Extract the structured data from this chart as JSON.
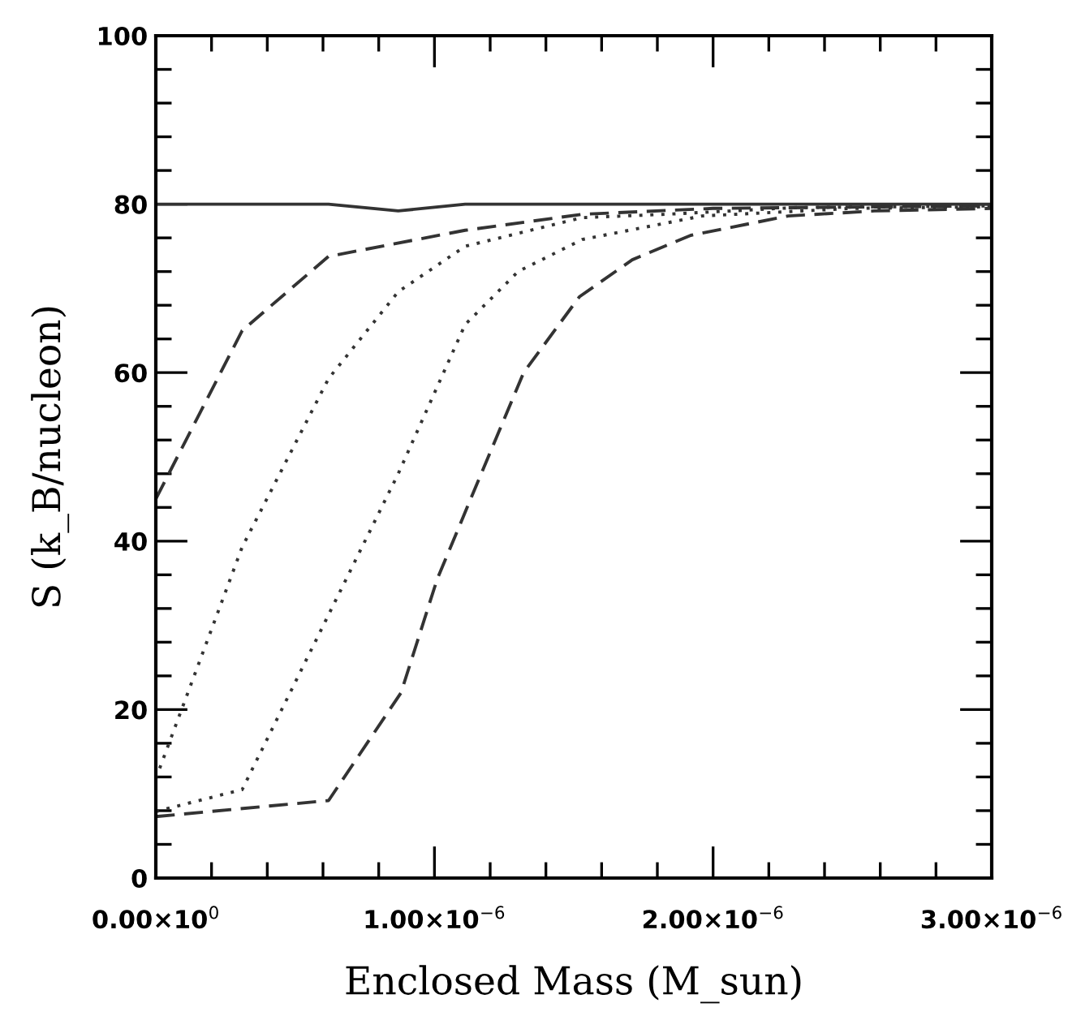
{
  "chart_data": {
    "type": "line",
    "xlabel": "Enclosed Mass (M_sun)",
    "ylabel": "S (k_B/nucleon)",
    "xlim": [
      0,
      3e-06
    ],
    "ylim": [
      0,
      100
    ],
    "xticks": [
      {
        "value": 0,
        "label": "0.00×10$^{0}$"
      },
      {
        "value": 2e-07,
        "label": null
      },
      {
        "value": 4e-07,
        "label": null
      },
      {
        "value": 6e-07,
        "label": null
      },
      {
        "value": 8e-07,
        "label": null
      },
      {
        "value": 1e-06,
        "label": "1.00×10$^{−6}$"
      },
      {
        "value": 1.2e-06,
        "label": null
      },
      {
        "value": 1.4e-06,
        "label": null
      },
      {
        "value": 1.6e-06,
        "label": null
      },
      {
        "value": 1.8e-06,
        "label": null
      },
      {
        "value": 2e-06,
        "label": "2.00×10$^{−6}$"
      },
      {
        "value": 2.2e-06,
        "label": null
      },
      {
        "value": 2.4e-06,
        "label": null
      },
      {
        "value": 2.6e-06,
        "label": null
      },
      {
        "value": 2.8e-06,
        "label": null
      },
      {
        "value": 3e-06,
        "label": "3.00×10$^{−6}$"
      }
    ],
    "yticks": [
      0,
      {
        "value": 4,
        "label": null
      },
      {
        "value": 8,
        "label": null
      },
      {
        "value": 12,
        "label": null
      },
      {
        "value": 16,
        "label": null
      },
      20,
      {
        "value": 24,
        "label": null
      },
      {
        "value": 28,
        "label": null
      },
      {
        "value": 32,
        "label": null
      },
      {
        "value": 36,
        "label": null
      },
      40,
      {
        "value": 44,
        "label": null
      },
      {
        "value": 48,
        "label": null
      },
      {
        "value": 52,
        "label": null
      },
      {
        "value": 56,
        "label": null
      },
      60,
      {
        "value": 64,
        "label": null
      },
      {
        "value": 68,
        "label": null
      },
      {
        "value": 72,
        "label": null
      },
      {
        "value": 76,
        "label": null
      },
      80,
      {
        "value": 84,
        "label": null
      },
      {
        "value": 88,
        "label": null
      },
      {
        "value": 92,
        "label": null
      },
      {
        "value": 96,
        "label": null
      },
      100
    ],
    "grid": false,
    "legend": false,
    "series": [
      {
        "color": "#333333",
        "line_style": "solid",
        "x": [
          0,
          6.2e-07,
          8.7e-07,
          1.11e-06,
          3e-06
        ],
        "values": [
          80,
          80,
          79.2,
          80,
          80
        ]
      },
      {
        "color": "#333333",
        "line_style": "dashed",
        "x": [
          0,
          3.1e-07,
          6.2e-07,
          1.11e-06,
          1.53e-06,
          2e-06,
          3e-06
        ],
        "values": [
          45,
          65,
          73.8,
          76.9,
          78.8,
          79.5,
          79.8
        ]
      },
      {
        "color": "#333333",
        "line_style": "dotted",
        "x": [
          0,
          3.1e-07,
          6.2e-07,
          8.7e-07,
          1.11e-06,
          1.53e-06,
          1.83e-06,
          2.3e-06,
          3e-06
        ],
        "values": [
          11.8,
          39.3,
          59.3,
          69.6,
          75,
          78.4,
          78.8,
          79.6,
          79.8
        ]
      },
      {
        "color": "#333333",
        "line_style": "dotted",
        "x": [
          0,
          3.1e-07,
          8.7e-07,
          1.11e-06,
          1.3e-06,
          1.53e-06,
          1.96e-06,
          2.5e-06,
          3e-06
        ],
        "values": [
          7.9,
          10.5,
          48,
          65.7,
          72,
          75.8,
          78.6,
          79.5,
          79.7
        ]
      },
      {
        "color": "#333333",
        "line_style": "dashed",
        "x": [
          0,
          6.2e-07,
          8.8e-07,
          1.01e-06,
          1.13e-06,
          1.32e-06,
          1.52e-06,
          1.71e-06,
          1.92e-06,
          2.27e-06,
          2.58e-06,
          3e-06
        ],
        "values": [
          7.3,
          9.2,
          22,
          35.5,
          45,
          60,
          69,
          73.4,
          76.3,
          78.6,
          79.2,
          79.5
        ]
      }
    ]
  }
}
